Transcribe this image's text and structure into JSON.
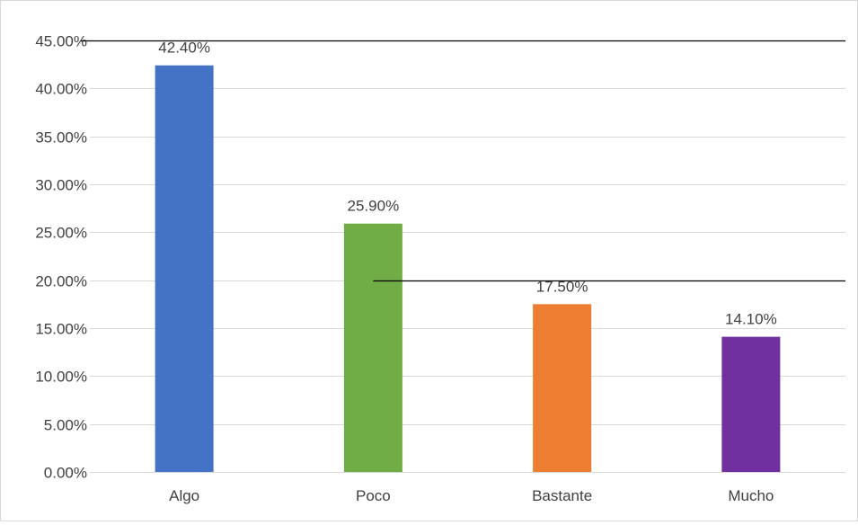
{
  "chart_data": {
    "type": "bar",
    "categories": [
      "Algo",
      "Poco",
      "Bastante",
      "Mucho"
    ],
    "values": [
      42.4,
      25.9,
      17.5,
      14.1
    ],
    "data_labels": [
      "42.40%",
      "25.90%",
      "17.50%",
      "14.10%"
    ],
    "colors": [
      "#4472c4",
      "#70ad47",
      "#ed7d31",
      "#7030a0"
    ],
    "ylim": [
      0,
      45
    ],
    "yticks": [
      0,
      5,
      10,
      15,
      20,
      25,
      30,
      35,
      40,
      45
    ],
    "ytick_labels": [
      "0.00%",
      "5.00%",
      "10.00%",
      "15.00%",
      "20.00%",
      "25.00%",
      "30.00%",
      "35.00%",
      "40.00%",
      "45.00%"
    ],
    "grid": true,
    "reference_lines": [
      {
        "value": 45,
        "from_category": 0,
        "color": "#000000"
      },
      {
        "value": 20,
        "from_category": 1,
        "color": "#000000"
      }
    ],
    "title": "",
    "xlabel": "",
    "ylabel": ""
  }
}
